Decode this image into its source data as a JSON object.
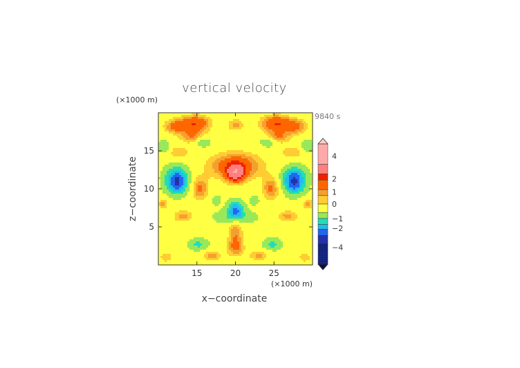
{
  "chart_data": {
    "type": "heatmap",
    "title": "vertical velocity",
    "xlabel": "x−coordinate",
    "ylabel": "z−coordinate",
    "x_unit": "(×1000 m)",
    "y_unit": "(×1000 m)",
    "time_label": "9840 s",
    "xlim": [
      10,
      30
    ],
    "ylim": [
      0,
      20
    ],
    "x_ticks": [
      "15",
      "20",
      "25"
    ],
    "y_ticks": [
      "5",
      "10",
      "15"
    ],
    "colorbar_ticks": [
      "4",
      "2",
      "1",
      "0",
      "−1",
      "−2",
      "−4"
    ],
    "colorbar_levels": [
      {
        "lo": 3.0,
        "color": "#ffaaaa"
      },
      {
        "lo": 2.0,
        "color": "#ff8080"
      },
      {
        "lo": 1.5,
        "color": "#ee2200"
      },
      {
        "lo": 1.0,
        "color": "#ff6600"
      },
      {
        "lo": 0.75,
        "color": "#f3a030"
      },
      {
        "lo": 0.5,
        "color": "#ffcc33"
      },
      {
        "lo": 0.0,
        "color": "#ffff44"
      },
      {
        "lo": -0.5,
        "color": "#99e85a"
      },
      {
        "lo": -1.0,
        "color": "#22dcb8"
      },
      {
        "lo": -1.5,
        "color": "#22bbee"
      },
      {
        "lo": -2.0,
        "color": "#2266ee"
      },
      {
        "lo": -3.0,
        "color": "#2233aa"
      },
      {
        "lo": -4.0,
        "color": "#112277"
      }
    ],
    "field_features": [
      {
        "x": 20.0,
        "z": 12.1,
        "w": 2.0,
        "sx": 0.8,
        "sz": 0.8
      },
      {
        "x": 20.0,
        "z": 13.0,
        "w": 1.2,
        "sx": 2.5,
        "sz": 1.3
      },
      {
        "x": 20.0,
        "z": 7.2,
        "w": -1.8,
        "sx": 0.7,
        "sz": 0.8
      },
      {
        "x": 20.0,
        "z": 6.3,
        "w": -0.6,
        "sx": 1.8,
        "sz": 0.6
      },
      {
        "x": 12.4,
        "z": 11.6,
        "w": -1.7,
        "sx": 1.0,
        "sz": 0.9
      },
      {
        "x": 12.4,
        "z": 10.3,
        "w": -1.4,
        "sx": 0.9,
        "sz": 0.8
      },
      {
        "x": 27.6,
        "z": 11.6,
        "w": -1.7,
        "sx": 1.0,
        "sz": 0.9
      },
      {
        "x": 27.6,
        "z": 10.3,
        "w": -1.4,
        "sx": 0.9,
        "sz": 0.8
      },
      {
        "x": 14.8,
        "z": 18.6,
        "w": 1.3,
        "sx": 1.4,
        "sz": 0.8
      },
      {
        "x": 25.2,
        "z": 18.6,
        "w": 1.3,
        "sx": 1.4,
        "sz": 0.8
      },
      {
        "x": 20.0,
        "z": 18.4,
        "w": 0.7,
        "sx": 0.8,
        "sz": 0.6
      },
      {
        "x": 12.2,
        "z": 18.2,
        "w": 0.9,
        "sx": 1.1,
        "sz": 0.7
      },
      {
        "x": 27.8,
        "z": 18.2,
        "w": 0.9,
        "sx": 1.1,
        "sz": 0.7
      },
      {
        "x": 14.5,
        "z": 16.8,
        "w": 0.8,
        "sx": 1.2,
        "sz": 0.6
      },
      {
        "x": 25.5,
        "z": 16.8,
        "w": 0.8,
        "sx": 1.2,
        "sz": 0.6
      },
      {
        "x": 15.4,
        "z": 10.0,
        "w": 0.9,
        "sx": 0.8,
        "sz": 1.1
      },
      {
        "x": 24.6,
        "z": 10.0,
        "w": 0.9,
        "sx": 0.8,
        "sz": 1.1
      },
      {
        "x": 20.0,
        "z": 4.2,
        "w": 0.8,
        "sx": 0.7,
        "sz": 1.6
      },
      {
        "x": 20.0,
        "z": 2.2,
        "w": 0.6,
        "sx": 0.9,
        "sz": 0.8
      },
      {
        "x": 13.2,
        "z": 6.4,
        "w": 0.7,
        "sx": 1.0,
        "sz": 0.6
      },
      {
        "x": 26.8,
        "z": 6.4,
        "w": 0.7,
        "sx": 1.0,
        "sz": 0.6
      },
      {
        "x": 15.2,
        "z": 2.7,
        "w": -0.8,
        "sx": 0.8,
        "sz": 0.5
      },
      {
        "x": 24.8,
        "z": 2.7,
        "w": -0.8,
        "sx": 0.8,
        "sz": 0.5
      },
      {
        "x": 12.6,
        "z": 14.8,
        "w": 0.6,
        "sx": 1.1,
        "sz": 0.6
      },
      {
        "x": 27.4,
        "z": 14.8,
        "w": 0.6,
        "sx": 1.1,
        "sz": 0.6
      },
      {
        "x": 15.8,
        "z": 16.2,
        "w": -0.7,
        "sx": 0.7,
        "sz": 0.5
      },
      {
        "x": 24.2,
        "z": 16.2,
        "w": -0.7,
        "sx": 0.7,
        "sz": 0.5
      },
      {
        "x": 10.7,
        "z": 15.5,
        "w": -0.6,
        "sx": 0.6,
        "sz": 0.6
      },
      {
        "x": 29.3,
        "z": 15.5,
        "w": -0.6,
        "sx": 0.6,
        "sz": 0.6
      },
      {
        "x": 10.6,
        "z": 8.0,
        "w": 0.7,
        "sx": 0.5,
        "sz": 0.5
      },
      {
        "x": 29.4,
        "z": 8.0,
        "w": 0.7,
        "sx": 0.5,
        "sz": 0.5
      },
      {
        "x": 17.5,
        "z": 8.5,
        "w": -0.6,
        "sx": 0.4,
        "sz": 0.4
      },
      {
        "x": 22.5,
        "z": 8.5,
        "w": -0.6,
        "sx": 0.4,
        "sz": 0.4
      },
      {
        "x": 17.0,
        "z": 1.2,
        "w": 0.7,
        "sx": 0.9,
        "sz": 0.5
      },
      {
        "x": 23.0,
        "z": 1.2,
        "w": 0.7,
        "sx": 0.9,
        "sz": 0.5
      },
      {
        "x": 11.0,
        "z": 1.0,
        "w": 0.6,
        "sx": 0.6,
        "sz": 0.5
      },
      {
        "x": 29.0,
        "z": 1.0,
        "w": 0.6,
        "sx": 0.6,
        "sz": 0.5
      }
    ],
    "field_background": 0.15,
    "grid": false
  }
}
